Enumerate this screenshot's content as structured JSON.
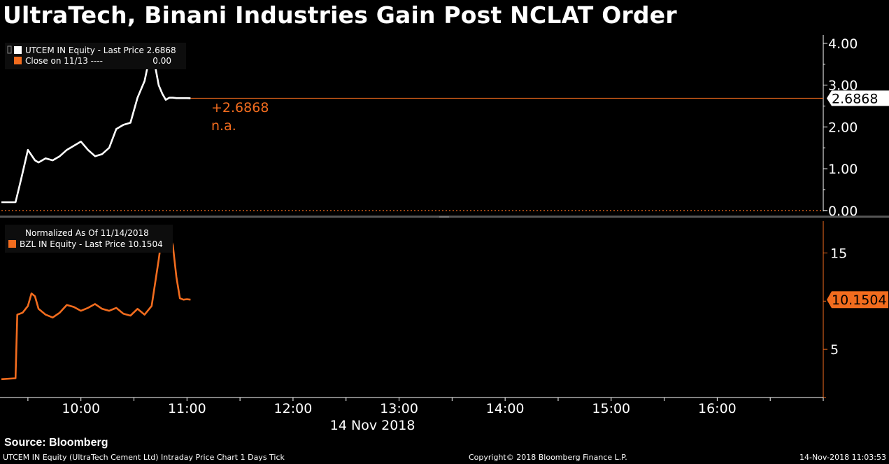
{
  "title": "UltraTech, Binani Industries Gain Post NCLAT Order",
  "source": "Source: Bloomberg",
  "footer": {
    "left": "UTCEM IN Equity (UltraTech Cement Ltd) Intraday Price Chart 1 Days  Tick",
    "middle": "Copyright© 2018 Bloomberg Finance L.P.",
    "right": "14-Nov-2018 11:03:53"
  },
  "colors": {
    "white_series": "#ffffff",
    "orange": "#f26c1e",
    "grid": "#444444"
  },
  "chart_data": [
    {
      "type": "line",
      "legend": [
        {
          "text": "UTCEM IN Equity - Last Price 2.6868",
          "color": "#ffffff"
        },
        {
          "text": "Close on 11/13 ----",
          "value": "0.00",
          "color": "#f26c1e"
        }
      ],
      "annotations": [
        "+2.6868",
        "n.a."
      ],
      "last_value_label": "2.6868",
      "yticks": [
        "0.00",
        "1.00",
        "2.00",
        "3.00",
        "4.00"
      ],
      "ylim": [
        -0.02,
        4.2
      ],
      "xlim": [
        "09:15",
        "17:00"
      ],
      "reference_line": {
        "name": "Close on 11/13",
        "value": 0.0
      },
      "last_price_line": 2.6868,
      "series": [
        {
          "color": "#ffffff",
          "x": [
            "09:15",
            "09:23",
            "09:25",
            "09:27",
            "09:30",
            "09:34",
            "09:36",
            "09:40",
            "09:44",
            "09:48",
            "09:52",
            "09:56",
            "10:00",
            "10:04",
            "10:08",
            "10:12",
            "10:16",
            "10:20",
            "10:24",
            "10:28",
            "10:32",
            "10:36",
            "10:40",
            "10:44",
            "10:46",
            "10:48",
            "10:50",
            "10:52",
            "10:54",
            "10:56",
            "10:58",
            "11:00",
            "11:02"
          ],
          "y": [
            0.2,
            0.2,
            0.55,
            0.9,
            1.45,
            1.2,
            1.15,
            1.25,
            1.2,
            1.3,
            1.45,
            1.55,
            1.65,
            1.45,
            1.3,
            1.35,
            1.5,
            1.95,
            2.05,
            2.1,
            2.7,
            3.1,
            3.9,
            3.0,
            2.8,
            2.65,
            2.7,
            2.7,
            2.69,
            2.69,
            2.69,
            2.69,
            2.6868
          ]
        }
      ]
    },
    {
      "type": "line",
      "legend": [
        {
          "text": "Normalized As Of 11/14/2018"
        },
        {
          "text": "BZL IN Equity - Last Price 10.1504",
          "color": "#f26c1e"
        }
      ],
      "last_value_label": "10.1504",
      "yticks": [
        "5",
        "15"
      ],
      "ylim": [
        0,
        18.3
      ],
      "xticks": [
        "10:00",
        "11:00",
        "12:00",
        "13:00",
        "14:00",
        "15:00",
        "16:00"
      ],
      "xlabel": "14 Nov 2018",
      "series": [
        {
          "color": "#f26c1e",
          "x": [
            "09:15",
            "09:23",
            "09:24",
            "09:27",
            "09:30",
            "09:32",
            "09:34",
            "09:36",
            "09:40",
            "09:44",
            "09:48",
            "09:52",
            "09:56",
            "10:00",
            "10:04",
            "10:08",
            "10:12",
            "10:16",
            "10:20",
            "10:24",
            "10:28",
            "10:32",
            "10:36",
            "10:40",
            "10:44",
            "10:46",
            "10:48",
            "10:50",
            "10:52",
            "10:54",
            "10:56",
            "10:58",
            "11:00",
            "11:02"
          ],
          "y": [
            1.9,
            2.0,
            8.6,
            8.8,
            9.5,
            10.8,
            10.5,
            9.2,
            8.6,
            8.3,
            8.8,
            9.6,
            9.4,
            9.0,
            9.3,
            9.7,
            9.2,
            9.0,
            9.3,
            8.7,
            8.5,
            9.2,
            8.6,
            9.5,
            14.3,
            17.0,
            16.0,
            16.8,
            15.8,
            12.5,
            10.3,
            10.15,
            10.2,
            10.1504
          ]
        }
      ]
    }
  ]
}
